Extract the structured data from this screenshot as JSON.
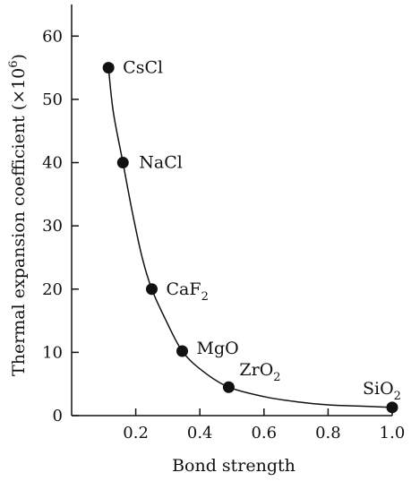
{
  "chart_data": {
    "type": "scatter",
    "title": "",
    "xlabel": "Bond strength",
    "ylabel": "Thermal expansion coefficient (×10",
    "ylabel_sup": "6",
    "ylabel_close": ")",
    "xlim": [
      0,
      1.0
    ],
    "ylim": [
      0,
      65
    ],
    "x_ticks": [
      {
        "value": 0.2,
        "label": "0.2"
      },
      {
        "value": 0.4,
        "label": "0.4"
      },
      {
        "value": 0.6,
        "label": "0.6"
      },
      {
        "value": 0.8,
        "label": "0.8"
      },
      {
        "value": 1.0,
        "label": "1.0"
      }
    ],
    "y_ticks": [
      {
        "value": 0,
        "label": "0"
      },
      {
        "value": 10,
        "label": "10"
      },
      {
        "value": 20,
        "label": "20"
      },
      {
        "value": 30,
        "label": "30"
      },
      {
        "value": 40,
        "label": "40"
      },
      {
        "value": 50,
        "label": "50"
      },
      {
        "value": 60,
        "label": "60"
      }
    ],
    "points": [
      {
        "label": "CsCl",
        "base": "CsCl",
        "sub": "",
        "x": 0.115,
        "y": 55
      },
      {
        "label": "NaCl",
        "base": "NaCl",
        "sub": "",
        "x": 0.16,
        "y": 40
      },
      {
        "label": "CaF2",
        "base": "CaF",
        "sub": "2",
        "x": 0.25,
        "y": 20
      },
      {
        "label": "MgO",
        "base": "MgO",
        "sub": "",
        "x": 0.345,
        "y": 10.2
      },
      {
        "label": "ZrO2",
        "base": "ZrO",
        "sub": "2",
        "x": 0.49,
        "y": 4.5
      },
      {
        "label": "SiO2",
        "base": "SiO",
        "sub": "2",
        "x": 1.0,
        "y": 1.3
      }
    ],
    "curve": [
      [
        0.115,
        55
      ],
      [
        0.13,
        48
      ],
      [
        0.16,
        40
      ],
      [
        0.19,
        32
      ],
      [
        0.22,
        25
      ],
      [
        0.25,
        20
      ],
      [
        0.29,
        15.5
      ],
      [
        0.345,
        10.2
      ],
      [
        0.41,
        7
      ],
      [
        0.49,
        4.5
      ],
      [
        0.6,
        3
      ],
      [
        0.7,
        2.2
      ],
      [
        0.8,
        1.7
      ],
      [
        0.9,
        1.5
      ],
      [
        1.0,
        1.3
      ]
    ],
    "grid": false,
    "legend": "none",
    "color": "#111111"
  }
}
